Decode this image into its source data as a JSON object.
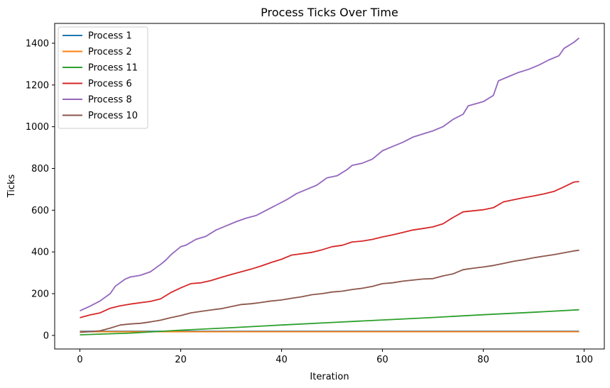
{
  "chart_data": {
    "type": "line",
    "title": "Process Ticks Over Time",
    "xlabel": "Iteration",
    "ylabel": "Ticks",
    "xlim": [
      -5,
      104
    ],
    "ylim": [
      -65,
      1495
    ],
    "xticks": [
      0,
      20,
      40,
      60,
      80,
      100
    ],
    "yticks": [
      0,
      200,
      400,
      600,
      800,
      1000,
      1200,
      1400
    ],
    "grid": false,
    "legend": "top-left",
    "series": [
      {
        "name": "Process 1",
        "color": "#1f77b4",
        "points": [
          [
            0,
            20
          ],
          [
            99,
            20
          ]
        ]
      },
      {
        "name": "Process 2",
        "color": "#ff7f0e",
        "points": [
          [
            0,
            18
          ],
          [
            99,
            18
          ]
        ]
      },
      {
        "name": "Process 11",
        "color": "#2ca02c",
        "points": [
          [
            0,
            3
          ],
          [
            10,
            11
          ],
          [
            20,
            25
          ],
          [
            30,
            37
          ],
          [
            40,
            50
          ],
          [
            50,
            62
          ],
          [
            60,
            74
          ],
          [
            70,
            86
          ],
          [
            80,
            99
          ],
          [
            90,
            111
          ],
          [
            99,
            123
          ]
        ]
      },
      {
        "name": "Process 6",
        "color": "#d62728",
        "points": [
          [
            0,
            85
          ],
          [
            2,
            98
          ],
          [
            4,
            108
          ],
          [
            6,
            130
          ],
          [
            8,
            142
          ],
          [
            10,
            150
          ],
          [
            14,
            163
          ],
          [
            16,
            175
          ],
          [
            18,
            205
          ],
          [
            20,
            228
          ],
          [
            22,
            248
          ],
          [
            24,
            252
          ],
          [
            26,
            263
          ],
          [
            28,
            278
          ],
          [
            30,
            292
          ],
          [
            34,
            318
          ],
          [
            36,
            333
          ],
          [
            38,
            350
          ],
          [
            40,
            365
          ],
          [
            42,
            385
          ],
          [
            46,
            398
          ],
          [
            48,
            410
          ],
          [
            50,
            425
          ],
          [
            52,
            432
          ],
          [
            54,
            448
          ],
          [
            56,
            452
          ],
          [
            58,
            460
          ],
          [
            60,
            472
          ],
          [
            62,
            482
          ],
          [
            64,
            493
          ],
          [
            66,
            505
          ],
          [
            68,
            512
          ],
          [
            70,
            520
          ],
          [
            72,
            535
          ],
          [
            74,
            565
          ],
          [
            76,
            592
          ],
          [
            78,
            597
          ],
          [
            80,
            602
          ],
          [
            82,
            612
          ],
          [
            84,
            640
          ],
          [
            86,
            650
          ],
          [
            88,
            660
          ],
          [
            90,
            668
          ],
          [
            92,
            678
          ],
          [
            94,
            690
          ],
          [
            96,
            712
          ],
          [
            98,
            735
          ],
          [
            99,
            737
          ]
        ]
      },
      {
        "name": "Process 8",
        "color": "#9467bd",
        "points": [
          [
            0,
            118
          ],
          [
            2,
            140
          ],
          [
            4,
            165
          ],
          [
            6,
            200
          ],
          [
            7,
            235
          ],
          [
            9,
            270
          ],
          [
            10,
            280
          ],
          [
            12,
            288
          ],
          [
            14,
            305
          ],
          [
            16,
            340
          ],
          [
            17,
            360
          ],
          [
            18,
            385
          ],
          [
            20,
            425
          ],
          [
            21,
            432
          ],
          [
            23,
            460
          ],
          [
            25,
            475
          ],
          [
            27,
            505
          ],
          [
            29,
            525
          ],
          [
            31,
            545
          ],
          [
            33,
            562
          ],
          [
            35,
            575
          ],
          [
            37,
            600
          ],
          [
            39,
            625
          ],
          [
            41,
            650
          ],
          [
            43,
            680
          ],
          [
            45,
            700
          ],
          [
            47,
            720
          ],
          [
            49,
            755
          ],
          [
            51,
            765
          ],
          [
            53,
            795
          ],
          [
            54,
            815
          ],
          [
            56,
            825
          ],
          [
            58,
            845
          ],
          [
            60,
            885
          ],
          [
            62,
            905
          ],
          [
            64,
            925
          ],
          [
            66,
            950
          ],
          [
            68,
            965
          ],
          [
            70,
            980
          ],
          [
            72,
            1000
          ],
          [
            74,
            1035
          ],
          [
            76,
            1060
          ],
          [
            77,
            1100
          ],
          [
            80,
            1120
          ],
          [
            82,
            1150
          ],
          [
            83,
            1220
          ],
          [
            85,
            1240
          ],
          [
            87,
            1260
          ],
          [
            89,
            1275
          ],
          [
            91,
            1295
          ],
          [
            93,
            1320
          ],
          [
            95,
            1340
          ],
          [
            96,
            1375
          ],
          [
            98,
            1405
          ],
          [
            99,
            1425
          ]
        ]
      },
      {
        "name": "Process 10",
        "color": "#8c564b",
        "points": [
          [
            0,
            15
          ],
          [
            2,
            18
          ],
          [
            4,
            22
          ],
          [
            6,
            35
          ],
          [
            8,
            50
          ],
          [
            10,
            55
          ],
          [
            12,
            58
          ],
          [
            14,
            65
          ],
          [
            16,
            73
          ],
          [
            18,
            85
          ],
          [
            20,
            95
          ],
          [
            22,
            108
          ],
          [
            24,
            115
          ],
          [
            26,
            122
          ],
          [
            28,
            128
          ],
          [
            30,
            138
          ],
          [
            32,
            148
          ],
          [
            34,
            152
          ],
          [
            36,
            158
          ],
          [
            38,
            165
          ],
          [
            40,
            170
          ],
          [
            42,
            178
          ],
          [
            44,
            185
          ],
          [
            46,
            195
          ],
          [
            48,
            200
          ],
          [
            50,
            208
          ],
          [
            52,
            212
          ],
          [
            54,
            220
          ],
          [
            56,
            226
          ],
          [
            58,
            235
          ],
          [
            60,
            248
          ],
          [
            62,
            252
          ],
          [
            64,
            260
          ],
          [
            66,
            265
          ],
          [
            68,
            270
          ],
          [
            70,
            272
          ],
          [
            72,
            285
          ],
          [
            74,
            295
          ],
          [
            76,
            315
          ],
          [
            78,
            322
          ],
          [
            80,
            328
          ],
          [
            82,
            335
          ],
          [
            84,
            345
          ],
          [
            86,
            355
          ],
          [
            88,
            363
          ],
          [
            90,
            372
          ],
          [
            92,
            380
          ],
          [
            94,
            387
          ],
          [
            96,
            396
          ],
          [
            98,
            405
          ],
          [
            99,
            408
          ]
        ]
      }
    ]
  }
}
